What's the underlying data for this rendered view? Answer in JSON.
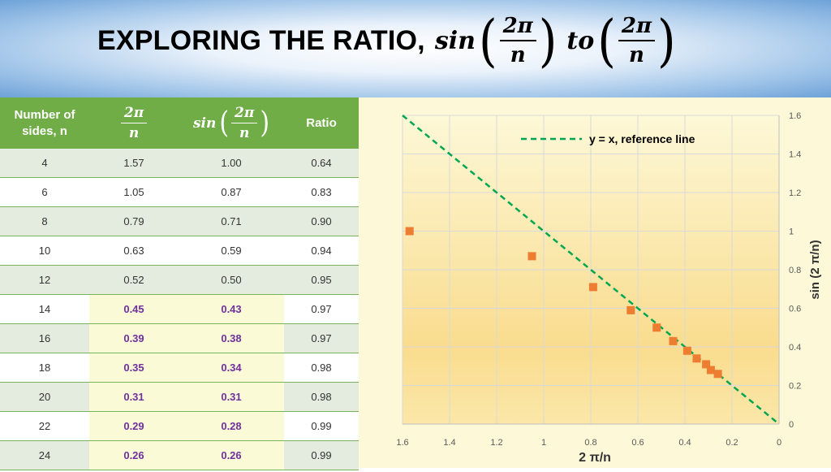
{
  "title": {
    "text": "EXPLORING THE RATIO,",
    "func": "sin",
    "frac_num": "2π",
    "frac_den": "n",
    "connector": "to"
  },
  "table": {
    "headers": {
      "col1": "Number of sides, n",
      "col2_num": "2π",
      "col2_den": "n",
      "col3_func": "sin",
      "col3_num": "2π",
      "col3_den": "n",
      "col4": "Ratio"
    },
    "rows": [
      {
        "n": "4",
        "angle": "1.57",
        "sin": "1.00",
        "ratio": "0.64"
      },
      {
        "n": "6",
        "angle": "1.05",
        "sin": "0.87",
        "ratio": "0.83"
      },
      {
        "n": "8",
        "angle": "0.79",
        "sin": "0.71",
        "ratio": "0.90"
      },
      {
        "n": "10",
        "angle": "0.63",
        "sin": "0.59",
        "ratio": "0.94"
      },
      {
        "n": "12",
        "angle": "0.52",
        "sin": "0.50",
        "ratio": "0.95"
      },
      {
        "n": "14",
        "angle": "0.45",
        "sin": "0.43",
        "ratio": "0.97"
      },
      {
        "n": "16",
        "angle": "0.39",
        "sin": "0.38",
        "ratio": "0.97"
      },
      {
        "n": "18",
        "angle": "0.35",
        "sin": "0.34",
        "ratio": "0.98"
      },
      {
        "n": "20",
        "angle": "0.31",
        "sin": "0.31",
        "ratio": "0.98"
      },
      {
        "n": "22",
        "angle": "0.29",
        "sin": "0.28",
        "ratio": "0.99"
      },
      {
        "n": "24",
        "angle": "0.26",
        "sin": "0.26",
        "ratio": "0.99"
      }
    ],
    "highlight_from_n": 14,
    "colors": {
      "header": "#70ad47",
      "highlight_text": "#7030a0",
      "highlight_bg": "#fbfad6"
    }
  },
  "chart_data": {
    "type": "scatter",
    "xlabel": "2 π/n",
    "ylabel": "sin (2 π/n)",
    "xlim": [
      0,
      1.6
    ],
    "ylim": [
      0,
      1.6
    ],
    "x_reversed": true,
    "y_axis_side": "right",
    "grid": true,
    "xticks": [
      "1.6",
      "1.4",
      "1.2",
      "1",
      "0.8",
      "0.6",
      "0.4",
      "0.2",
      "0"
    ],
    "yticks": [
      "0",
      "0.2",
      "0.4",
      "0.6",
      "0.8",
      "1",
      "1.2",
      "1.4",
      "1.6"
    ],
    "series": [
      {
        "type": "scatter",
        "color": "#ed7d31",
        "marker": "square",
        "x": [
          1.57,
          1.05,
          0.79,
          0.63,
          0.52,
          0.45,
          0.39,
          0.35,
          0.31,
          0.29,
          0.26
        ],
        "y": [
          1.0,
          0.87,
          0.71,
          0.59,
          0.5,
          0.43,
          0.38,
          0.34,
          0.31,
          0.28,
          0.26
        ]
      },
      {
        "name": "y = x, reference line",
        "type": "line",
        "style": "dashed",
        "color": "#00a651",
        "x": [
          1.6,
          0
        ],
        "y": [
          1.6,
          0
        ]
      }
    ],
    "legend": {
      "text": "y = x, reference line",
      "position": "top-center"
    }
  }
}
